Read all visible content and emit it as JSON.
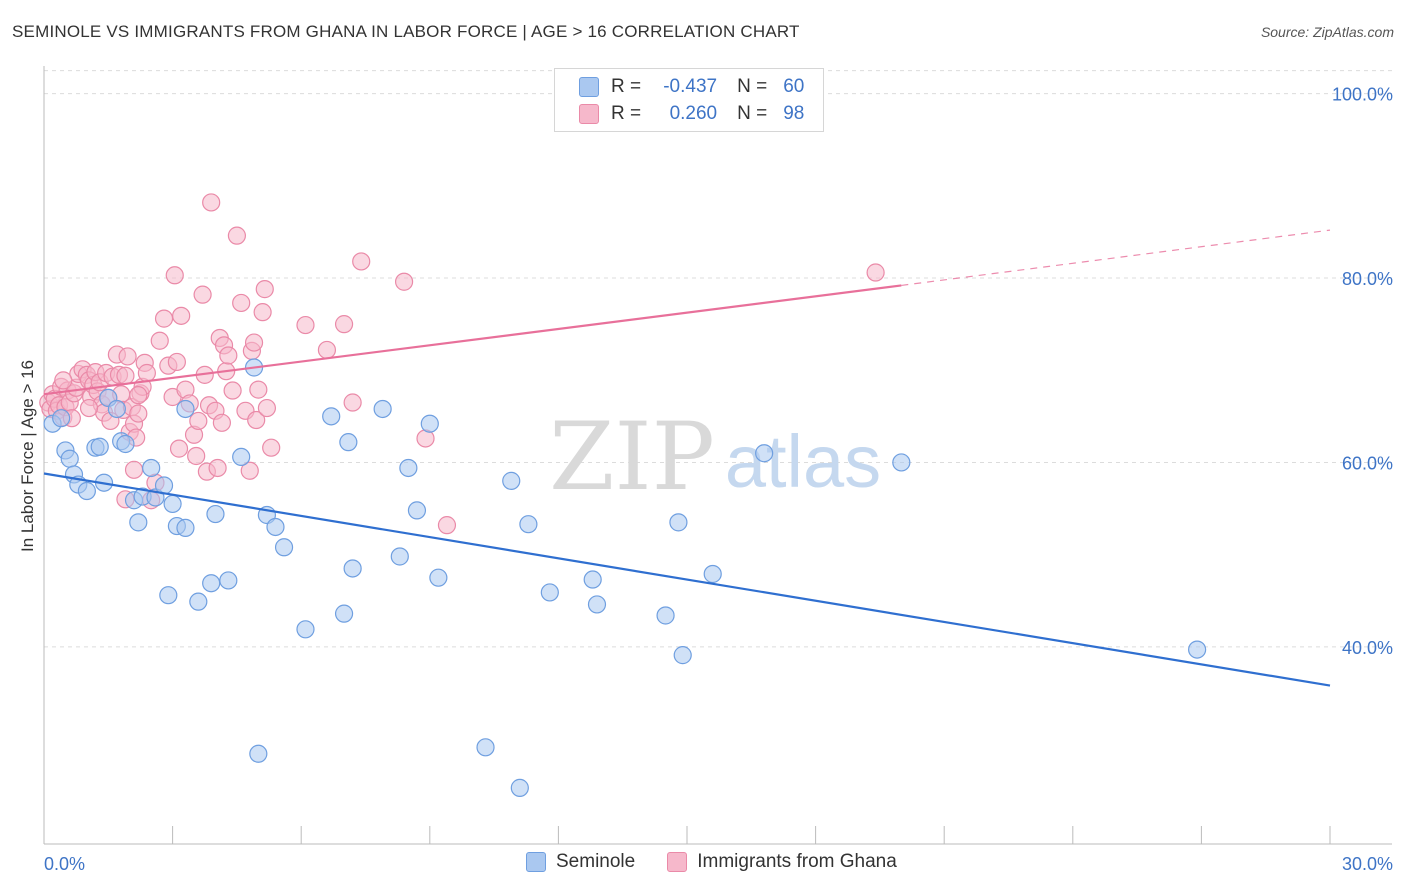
{
  "header": {
    "title": "SEMINOLE VS IMMIGRANTS FROM GHANA IN LABOR FORCE | AGE > 16 CORRELATION CHART",
    "source": "Source: ZipAtlas.com"
  },
  "watermark": {
    "zip": "ZIP",
    "atlas": "atlas"
  },
  "legend": {
    "rows": [
      {
        "r_label": "R =",
        "r_value": "-0.437",
        "n_label": "N =",
        "n_value": "60"
      },
      {
        "r_label": "R =",
        "r_value": "0.260",
        "n_label": "N =",
        "n_value": "98"
      }
    ],
    "bottom": [
      "Seminole",
      "Immigrants from Ghana"
    ]
  },
  "colors": {
    "seminole_fill": "#aac8f0",
    "seminole_stroke": "#6f9fe0",
    "seminole_line": "#2f6fd0",
    "ghana_fill": "#f6b8cb",
    "ghana_stroke": "#ea8aa8",
    "ghana_line": "#e8709a",
    "axis_label": "#3e74c6",
    "grid": "#dcdcdc"
  },
  "chart_data": {
    "type": "scatter",
    "title": "SEMINOLE VS IMMIGRANTS FROM GHANA IN LABOR FORCE | AGE > 16 CORRELATION CHART",
    "ylabel": "In Labor Force | Age > 16",
    "xlabel": "",
    "xlim": [
      0,
      30
    ],
    "ylim": [
      21,
      103
    ],
    "x_tick_labels": [
      "0.0%",
      "30.0%"
    ],
    "y_ticks": [
      40,
      60,
      80,
      100
    ],
    "y_tick_labels": [
      "40.0%",
      "60.0%",
      "80.0%",
      "100.0%"
    ],
    "grid": true,
    "legend_position": "top-center",
    "series": [
      {
        "name": "Seminole",
        "R": -0.437,
        "N": 60,
        "trend": {
          "x": [
            0,
            30
          ],
          "y": [
            58.8,
            35.8
          ],
          "dashed_from": null
        },
        "points": [
          [
            0.2,
            64.2
          ],
          [
            0.4,
            64.8
          ],
          [
            0.5,
            61.3
          ],
          [
            0.6,
            60.4
          ],
          [
            0.7,
            58.7
          ],
          [
            0.8,
            57.6
          ],
          [
            1.0,
            56.9
          ],
          [
            1.2,
            61.6
          ],
          [
            1.3,
            61.7
          ],
          [
            1.4,
            57.8
          ],
          [
            1.5,
            67.0
          ],
          [
            1.7,
            65.8
          ],
          [
            1.8,
            62.3
          ],
          [
            1.9,
            62.0
          ],
          [
            2.1,
            55.9
          ],
          [
            2.2,
            53.5
          ],
          [
            2.3,
            56.3
          ],
          [
            2.5,
            59.4
          ],
          [
            2.6,
            56.2
          ],
          [
            2.8,
            57.5
          ],
          [
            2.9,
            45.6
          ],
          [
            3.0,
            55.5
          ],
          [
            3.1,
            53.1
          ],
          [
            3.3,
            52.9
          ],
          [
            3.3,
            65.8
          ],
          [
            3.6,
            44.9
          ],
          [
            3.9,
            46.9
          ],
          [
            4.0,
            54.4
          ],
          [
            4.3,
            47.2
          ],
          [
            4.6,
            60.6
          ],
          [
            4.9,
            70.3
          ],
          [
            5.0,
            28.4
          ],
          [
            5.2,
            54.3
          ],
          [
            5.4,
            53.0
          ],
          [
            5.6,
            50.8
          ],
          [
            6.1,
            41.9
          ],
          [
            6.7,
            65.0
          ],
          [
            7.0,
            43.6
          ],
          [
            7.1,
            62.2
          ],
          [
            7.2,
            48.5
          ],
          [
            7.9,
            65.8
          ],
          [
            8.3,
            49.8
          ],
          [
            8.5,
            59.4
          ],
          [
            8.7,
            54.8
          ],
          [
            9.0,
            64.2
          ],
          [
            9.2,
            47.5
          ],
          [
            10.3,
            29.1
          ],
          [
            11.1,
            24.7
          ],
          [
            11.3,
            53.3
          ],
          [
            11.8,
            45.9
          ],
          [
            12.8,
            47.3
          ],
          [
            12.9,
            44.6
          ],
          [
            14.5,
            43.4
          ],
          [
            14.8,
            53.5
          ],
          [
            14.9,
            39.1
          ],
          [
            15.6,
            47.9
          ],
          [
            16.8,
            61.0
          ],
          [
            20.0,
            60.0
          ],
          [
            26.9,
            39.7
          ],
          [
            10.9,
            58.0
          ]
        ]
      },
      {
        "name": "Immigrants from Ghana",
        "R": 0.26,
        "N": 98,
        "trend": {
          "x": [
            0,
            20,
            30
          ],
          "y": [
            67.4,
            79.2,
            85.2
          ],
          "dashed_from": 20
        },
        "points": [
          [
            0.1,
            66.5
          ],
          [
            0.15,
            65.8
          ],
          [
            0.2,
            67.4
          ],
          [
            0.25,
            66.9
          ],
          [
            0.3,
            65.6
          ],
          [
            0.35,
            66.2
          ],
          [
            0.4,
            68.2
          ],
          [
            0.45,
            64.9
          ],
          [
            0.5,
            66.0
          ],
          [
            0.55,
            67.8
          ],
          [
            0.6,
            66.5
          ],
          [
            0.65,
            64.8
          ],
          [
            0.7,
            67.5
          ],
          [
            0.75,
            68.1
          ],
          [
            0.8,
            69.6
          ],
          [
            0.9,
            70.1
          ],
          [
            1.0,
            69.5
          ],
          [
            1.05,
            68.9
          ],
          [
            1.1,
            67.1
          ],
          [
            1.15,
            68.4
          ],
          [
            1.2,
            69.8
          ],
          [
            1.25,
            67.7
          ],
          [
            1.3,
            68.7
          ],
          [
            1.35,
            66.3
          ],
          [
            1.4,
            65.4
          ],
          [
            1.45,
            69.7
          ],
          [
            1.5,
            67.0
          ],
          [
            1.55,
            64.5
          ],
          [
            1.6,
            69.3
          ],
          [
            1.7,
            71.7
          ],
          [
            1.75,
            69.5
          ],
          [
            1.8,
            67.4
          ],
          [
            1.85,
            65.7
          ],
          [
            1.9,
            69.4
          ],
          [
            1.95,
            71.5
          ],
          [
            2.0,
            63.3
          ],
          [
            2.05,
            66.0
          ],
          [
            2.1,
            64.2
          ],
          [
            2.2,
            65.3
          ],
          [
            2.25,
            67.5
          ],
          [
            2.3,
            68.2
          ],
          [
            2.35,
            70.8
          ],
          [
            2.4,
            69.7
          ],
          [
            2.5,
            55.9
          ],
          [
            2.6,
            57.8
          ],
          [
            2.7,
            73.2
          ],
          [
            2.8,
            75.6
          ],
          [
            2.9,
            70.5
          ],
          [
            3.0,
            67.1
          ],
          [
            3.05,
            80.3
          ],
          [
            3.1,
            70.9
          ],
          [
            3.2,
            75.9
          ],
          [
            3.3,
            67.9
          ],
          [
            3.4,
            66.4
          ],
          [
            3.5,
            63.0
          ],
          [
            3.55,
            60.7
          ],
          [
            3.6,
            64.5
          ],
          [
            3.7,
            78.2
          ],
          [
            3.75,
            69.5
          ],
          [
            3.8,
            59.0
          ],
          [
            3.85,
            66.2
          ],
          [
            3.9,
            88.2
          ],
          [
            4.0,
            65.6
          ],
          [
            4.05,
            59.4
          ],
          [
            4.1,
            73.5
          ],
          [
            4.2,
            72.7
          ],
          [
            4.25,
            69.9
          ],
          [
            4.3,
            71.6
          ],
          [
            4.4,
            67.8
          ],
          [
            4.5,
            84.6
          ],
          [
            4.6,
            77.3
          ],
          [
            4.7,
            65.6
          ],
          [
            4.8,
            59.1
          ],
          [
            4.85,
            72.1
          ],
          [
            4.9,
            73.0
          ],
          [
            4.95,
            64.6
          ],
          [
            5.0,
            67.9
          ],
          [
            5.1,
            76.3
          ],
          [
            5.15,
            78.8
          ],
          [
            5.2,
            65.9
          ],
          [
            5.3,
            61.6
          ],
          [
            6.1,
            74.9
          ],
          [
            6.6,
            72.2
          ],
          [
            7.0,
            75.0
          ],
          [
            7.2,
            66.5
          ],
          [
            7.4,
            81.8
          ],
          [
            8.4,
            79.6
          ],
          [
            8.9,
            62.6
          ],
          [
            9.4,
            53.2
          ],
          [
            19.4,
            80.6
          ],
          [
            1.9,
            56.0
          ],
          [
            2.1,
            59.2
          ],
          [
            2.15,
            62.7
          ],
          [
            2.2,
            67.3
          ],
          [
            3.15,
            61.5
          ],
          [
            4.15,
            64.3
          ],
          [
            1.05,
            65.9
          ],
          [
            0.45,
            68.9
          ]
        ]
      }
    ]
  }
}
